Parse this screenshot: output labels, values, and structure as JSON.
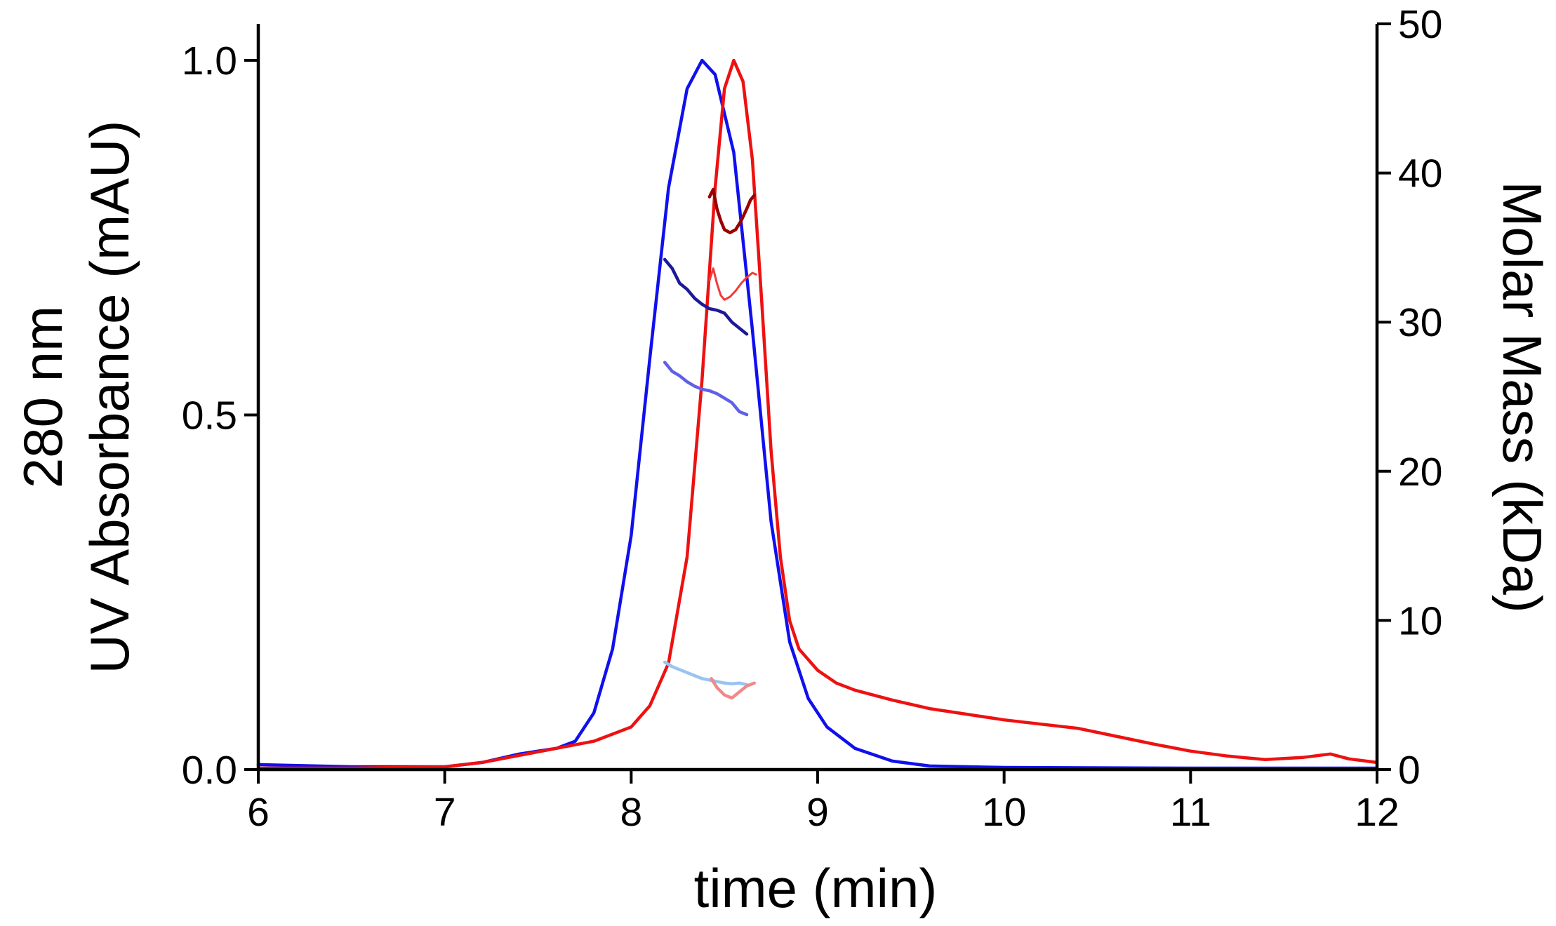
{
  "chart_data": {
    "type": "line",
    "xlabel": "time (min)",
    "ylabel_left": [
      "280 nm",
      "UV Absorbance (mAU)"
    ],
    "ylabel_right": "Molar Mass (kDa)",
    "xlim": [
      6,
      12
    ],
    "ylim_left": [
      0,
      1.0
    ],
    "ylim_right": [
      0,
      50
    ],
    "x_ticks": [
      6,
      7,
      8,
      9,
      10,
      11,
      12
    ],
    "x_tick_labels": [
      "6",
      "7",
      "8",
      "9",
      "10",
      "11",
      "12"
    ],
    "y_left_ticks": [
      0,
      0.5,
      1.0
    ],
    "y_left_tick_labels": [
      "0.0",
      "0.5",
      "1.0"
    ],
    "y_right_ticks": [
      0,
      10,
      20,
      30,
      40,
      50
    ],
    "y_right_tick_labels": [
      "0",
      "10",
      "20",
      "30",
      "40",
      "50"
    ],
    "grid": false,
    "legend": "none",
    "series": [
      {
        "axis": "left",
        "color": "#1010ee",
        "width": 4.5,
        "points": [
          [
            6.0,
            0.007
          ],
          [
            6.5,
            0.004
          ],
          [
            7.0,
            0.004
          ],
          [
            7.2,
            0.01
          ],
          [
            7.4,
            0.022
          ],
          [
            7.6,
            0.03
          ],
          [
            7.7,
            0.04
          ],
          [
            7.8,
            0.08
          ],
          [
            7.9,
            0.17
          ],
          [
            8.0,
            0.33
          ],
          [
            8.1,
            0.58
          ],
          [
            8.2,
            0.82
          ],
          [
            8.3,
            0.96
          ],
          [
            8.38,
            1.0
          ],
          [
            8.45,
            0.98
          ],
          [
            8.55,
            0.87
          ],
          [
            8.65,
            0.62
          ],
          [
            8.75,
            0.35
          ],
          [
            8.85,
            0.18
          ],
          [
            8.95,
            0.1
          ],
          [
            9.05,
            0.06
          ],
          [
            9.2,
            0.03
          ],
          [
            9.4,
            0.012
          ],
          [
            9.6,
            0.005
          ],
          [
            10.0,
            0.003
          ],
          [
            11.0,
            0.002
          ],
          [
            12.0,
            0.002
          ]
        ]
      },
      {
        "axis": "left",
        "color": "#ee1111",
        "width": 4.5,
        "points": [
          [
            6.0,
            0.002
          ],
          [
            6.5,
            0.002
          ],
          [
            7.0,
            0.004
          ],
          [
            7.2,
            0.01
          ],
          [
            7.4,
            0.02
          ],
          [
            7.6,
            0.03
          ],
          [
            7.8,
            0.04
          ],
          [
            8.0,
            0.06
          ],
          [
            8.1,
            0.09
          ],
          [
            8.2,
            0.15
          ],
          [
            8.3,
            0.3
          ],
          [
            8.38,
            0.55
          ],
          [
            8.45,
            0.82
          ],
          [
            8.5,
            0.96
          ],
          [
            8.55,
            1.0
          ],
          [
            8.6,
            0.97
          ],
          [
            8.65,
            0.86
          ],
          [
            8.7,
            0.66
          ],
          [
            8.75,
            0.45
          ],
          [
            8.8,
            0.3
          ],
          [
            8.85,
            0.21
          ],
          [
            8.9,
            0.17
          ],
          [
            9.0,
            0.14
          ],
          [
            9.1,
            0.122
          ],
          [
            9.2,
            0.112
          ],
          [
            9.4,
            0.098
          ],
          [
            9.6,
            0.086
          ],
          [
            9.8,
            0.078
          ],
          [
            10.0,
            0.07
          ],
          [
            10.2,
            0.064
          ],
          [
            10.4,
            0.058
          ],
          [
            10.6,
            0.047
          ],
          [
            10.8,
            0.036
          ],
          [
            11.0,
            0.026
          ],
          [
            11.2,
            0.019
          ],
          [
            11.4,
            0.014
          ],
          [
            11.6,
            0.017
          ],
          [
            11.75,
            0.022
          ],
          [
            11.85,
            0.015
          ],
          [
            12.0,
            0.01
          ]
        ]
      },
      {
        "axis": "right",
        "color": "#1a1a99",
        "width": 4.5,
        "points": [
          [
            8.18,
            34.2
          ],
          [
            8.22,
            33.6
          ],
          [
            8.26,
            32.6
          ],
          [
            8.3,
            32.2
          ],
          [
            8.34,
            31.6
          ],
          [
            8.38,
            31.2
          ],
          [
            8.42,
            30.9
          ],
          [
            8.46,
            30.8
          ],
          [
            8.5,
            30.6
          ],
          [
            8.54,
            30.0
          ],
          [
            8.58,
            29.6
          ],
          [
            8.62,
            29.2
          ]
        ]
      },
      {
        "axis": "right",
        "color": "#6060e6",
        "width": 4.5,
        "points": [
          [
            8.18,
            27.3
          ],
          [
            8.22,
            26.7
          ],
          [
            8.26,
            26.4
          ],
          [
            8.3,
            26.0
          ],
          [
            8.34,
            25.7
          ],
          [
            8.38,
            25.5
          ],
          [
            8.42,
            25.4
          ],
          [
            8.46,
            25.2
          ],
          [
            8.5,
            24.9
          ],
          [
            8.54,
            24.6
          ],
          [
            8.58,
            24.0
          ],
          [
            8.62,
            23.8
          ]
        ]
      },
      {
        "axis": "right",
        "color": "#99c4f0",
        "width": 4.5,
        "points": [
          [
            8.18,
            7.2
          ],
          [
            8.22,
            6.9
          ],
          [
            8.26,
            6.7
          ],
          [
            8.3,
            6.5
          ],
          [
            8.34,
            6.3
          ],
          [
            8.38,
            6.1
          ],
          [
            8.42,
            6.0
          ],
          [
            8.46,
            5.9
          ],
          [
            8.5,
            5.8
          ],
          [
            8.54,
            5.75
          ],
          [
            8.58,
            5.8
          ],
          [
            8.62,
            5.7
          ]
        ]
      },
      {
        "axis": "right",
        "color": "#990000",
        "width": 4.5,
        "points": [
          [
            8.42,
            38.4
          ],
          [
            8.44,
            38.9
          ],
          [
            8.46,
            37.6
          ],
          [
            8.48,
            36.8
          ],
          [
            8.5,
            36.2
          ],
          [
            8.53,
            36.0
          ],
          [
            8.56,
            36.2
          ],
          [
            8.59,
            36.8
          ],
          [
            8.62,
            37.6
          ],
          [
            8.64,
            38.2
          ],
          [
            8.66,
            38.5
          ]
        ]
      },
      {
        "axis": "right",
        "color": "#f03a3a",
        "width": 3,
        "points": [
          [
            8.42,
            32.8
          ],
          [
            8.44,
            33.6
          ],
          [
            8.46,
            32.6
          ],
          [
            8.48,
            31.8
          ],
          [
            8.5,
            31.5
          ],
          [
            8.53,
            31.7
          ],
          [
            8.56,
            32.1
          ],
          [
            8.59,
            32.6
          ],
          [
            8.62,
            33.0
          ],
          [
            8.65,
            33.3
          ],
          [
            8.67,
            33.2
          ]
        ]
      },
      {
        "axis": "right",
        "color": "#f08a8a",
        "width": 4.5,
        "points": [
          [
            8.43,
            6.1
          ],
          [
            8.46,
            5.5
          ],
          [
            8.5,
            5.0
          ],
          [
            8.54,
            4.8
          ],
          [
            8.58,
            5.2
          ],
          [
            8.62,
            5.6
          ],
          [
            8.66,
            5.8
          ]
        ]
      }
    ]
  }
}
